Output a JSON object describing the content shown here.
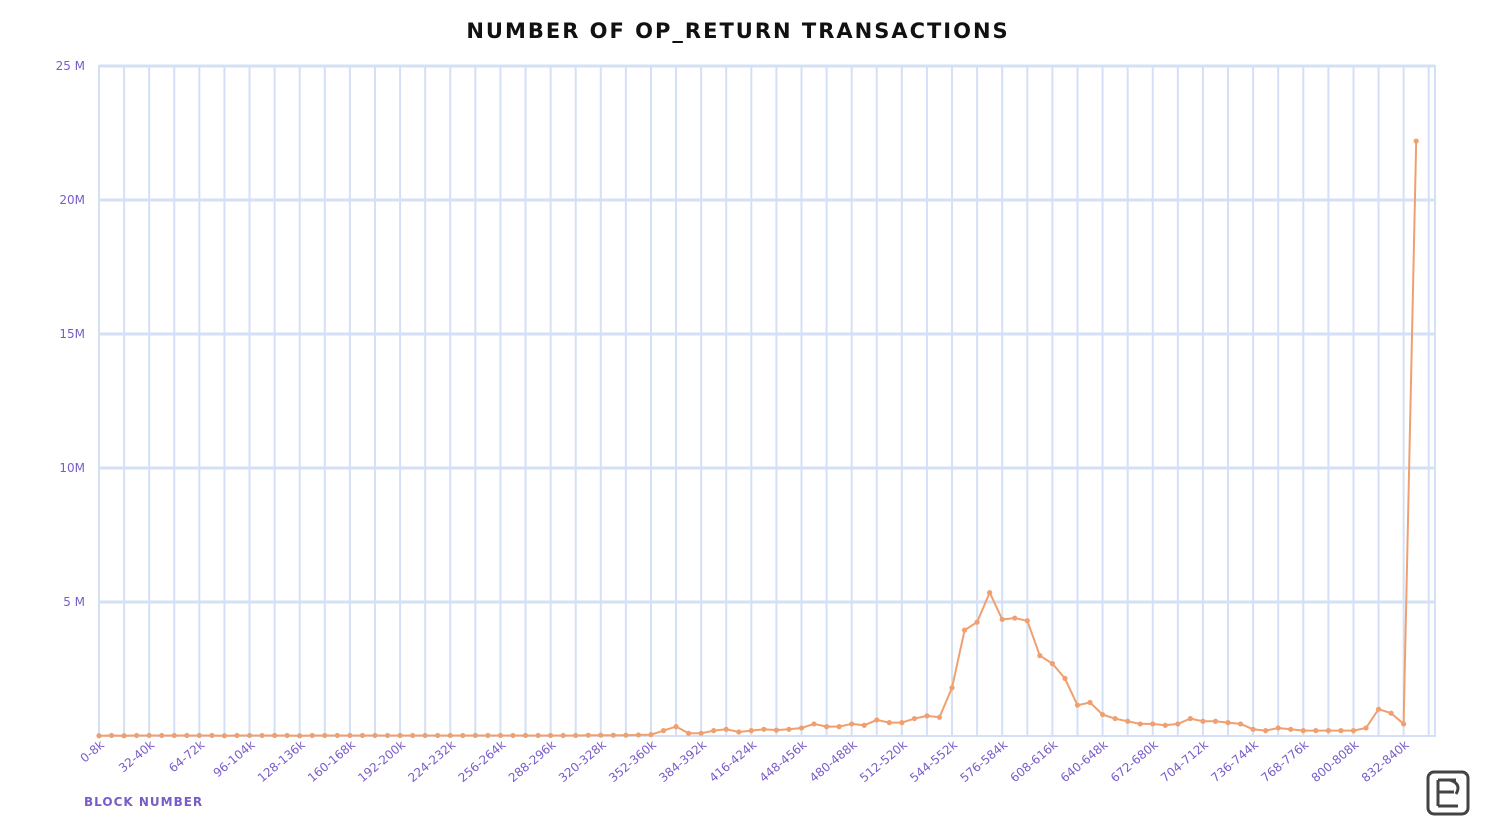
{
  "chart_data": {
    "type": "line",
    "title": "NUMBER OF OP_RETURN TRANSACTIONS",
    "x_label": "BLOCK NUMBER",
    "categories": [
      "0-8k",
      null,
      null,
      null,
      "32-40k",
      null,
      null,
      null,
      "64-72k",
      null,
      null,
      null,
      "96-104k",
      null,
      null,
      null,
      "128-136k",
      null,
      null,
      null,
      "160-168k",
      null,
      null,
      null,
      "192-200k",
      null,
      null,
      null,
      "224-232k",
      null,
      null,
      null,
      "256-264k",
      null,
      null,
      null,
      "288-296k",
      null,
      null,
      null,
      "320-328k",
      null,
      null,
      null,
      "352-360k",
      null,
      null,
      null,
      "384-392k",
      null,
      null,
      null,
      "416-424k",
      null,
      null,
      null,
      "448-456k",
      null,
      null,
      null,
      "480-488k",
      null,
      null,
      null,
      "512-520k",
      null,
      null,
      null,
      "544-552k",
      null,
      null,
      null,
      "576-584k",
      null,
      null,
      null,
      "608-616k",
      null,
      null,
      null,
      "640-648k",
      null,
      null,
      null,
      "672-680k",
      null,
      null,
      null,
      "704-712k",
      null,
      null,
      null,
      "736-744k",
      null,
      null,
      null,
      "768-776k",
      null,
      null,
      null,
      "800-808k",
      null,
      null,
      null,
      "832-840k",
      null
    ],
    "series": [
      {
        "name": "OP_RETURN transactions",
        "color": "#f0a070",
        "values": [
          0.01,
          0.02,
          0.01,
          0.02,
          0.02,
          0.02,
          0.02,
          0.02,
          0.02,
          0.02,
          0.01,
          0.02,
          0.02,
          0.02,
          0.02,
          0.02,
          0.01,
          0.02,
          0.02,
          0.02,
          0.02,
          0.02,
          0.02,
          0.02,
          0.02,
          0.02,
          0.02,
          0.02,
          0.02,
          0.02,
          0.02,
          0.02,
          0.02,
          0.02,
          0.02,
          0.02,
          0.02,
          0.02,
          0.02,
          0.03,
          0.03,
          0.03,
          0.03,
          0.04,
          0.05,
          0.2,
          0.35,
          0.1,
          0.1,
          0.2,
          0.25,
          0.15,
          0.2,
          0.25,
          0.22,
          0.25,
          0.3,
          0.45,
          0.35,
          0.35,
          0.45,
          0.4,
          0.6,
          0.5,
          0.5,
          0.65,
          0.75,
          0.7,
          1.8,
          3.95,
          4.25,
          5.35,
          4.35,
          4.4,
          4.3,
          3.0,
          2.7,
          2.15,
          1.15,
          1.25,
          0.8,
          0.65,
          0.55,
          0.45,
          0.45,
          0.4,
          0.45,
          0.65,
          0.55,
          0.55,
          0.5,
          0.45,
          0.25,
          0.2,
          0.3,
          0.25,
          0.2,
          0.2,
          0.2,
          0.2,
          0.2,
          0.3,
          1.0,
          0.85,
          0.45,
          22.2
        ]
      }
    ],
    "ylim": [
      0,
      25
    ],
    "yticks": [
      {
        "value": 5,
        "label": "5 M"
      },
      {
        "value": 10,
        "label": "10M"
      },
      {
        "value": 15,
        "label": "15M"
      },
      {
        "value": 20,
        "label": "20M"
      },
      {
        "value": 25,
        "label": "25 M"
      }
    ],
    "grid": true
  }
}
